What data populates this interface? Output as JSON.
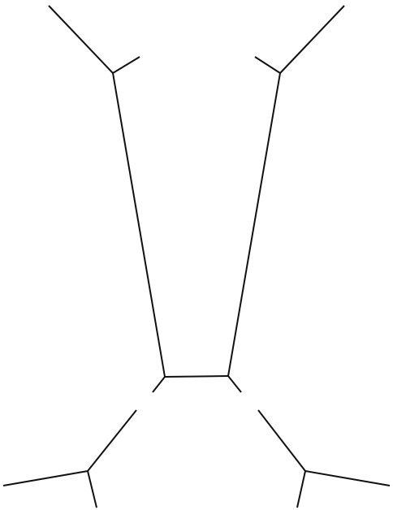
{
  "diagram": {
    "type": "line-drawing",
    "description_text": "",
    "stroke_color": "#111111",
    "background_color": "#ffffff",
    "segment_count": 14
  }
}
